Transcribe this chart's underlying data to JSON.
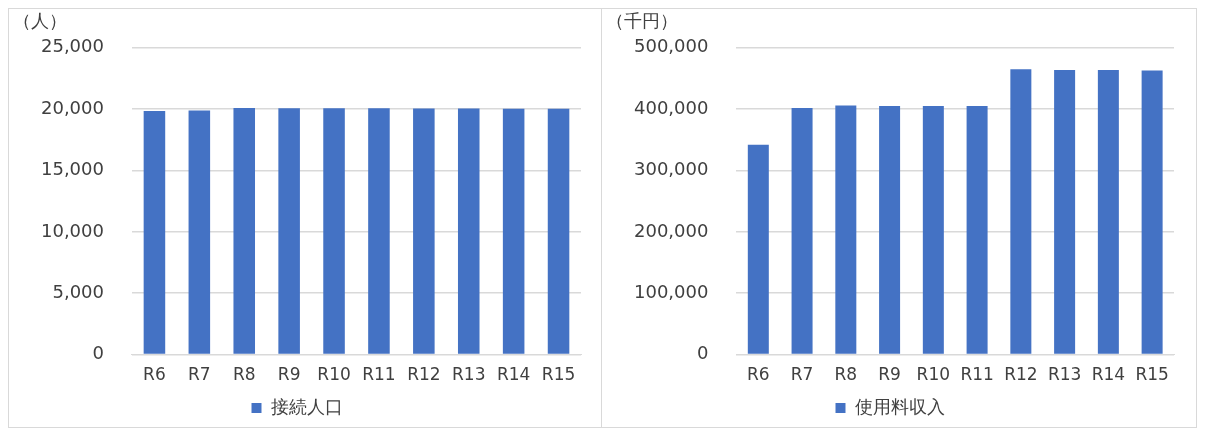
{
  "chart_data": [
    {
      "type": "bar",
      "ylabel": "（人）",
      "categories": [
        "R6",
        "R7",
        "R8",
        "R9",
        "R10",
        "R11",
        "R12",
        "R13",
        "R14",
        "R15"
      ],
      "series": [
        {
          "name": "接続人口",
          "color": "#4472c4",
          "values": [
            19850,
            19900,
            20100,
            20080,
            20080,
            20080,
            20060,
            20060,
            20030,
            20030
          ]
        }
      ],
      "ylim": [
        0,
        25000
      ],
      "yticks": [
        0,
        {
          "value": 5000,
          "label": "5,000"
        },
        {
          "value": 10000,
          "label": "10,000"
        },
        {
          "value": 15000,
          "label": "15,000"
        },
        {
          "value": 20000,
          "label": "20,000"
        },
        {
          "value": 25000,
          "label": "25,000"
        }
      ],
      "grid": "y",
      "legend": "bottom"
    },
    {
      "type": "bar",
      "ylabel": "（千円）",
      "categories": [
        "R6",
        "R7",
        "R8",
        "R9",
        "R10",
        "R11",
        "R12",
        "R13",
        "R14",
        "R15"
      ],
      "series": [
        {
          "name": "使用料収入",
          "color": "#4472c4",
          "values": [
            342000,
            402000,
            406000,
            405000,
            405000,
            405000,
            465000,
            464000,
            464000,
            463000
          ]
        }
      ],
      "ylim": [
        0,
        500000
      ],
      "yticks": [
        0,
        {
          "value": 100000,
          "label": "100,000"
        },
        {
          "value": 200000,
          "label": "200,000"
        },
        {
          "value": 300000,
          "label": "300,000"
        },
        {
          "value": 400000,
          "label": "400,000"
        },
        {
          "value": 500000,
          "label": "500,000"
        }
      ],
      "grid": "y",
      "legend": "bottom"
    }
  ]
}
